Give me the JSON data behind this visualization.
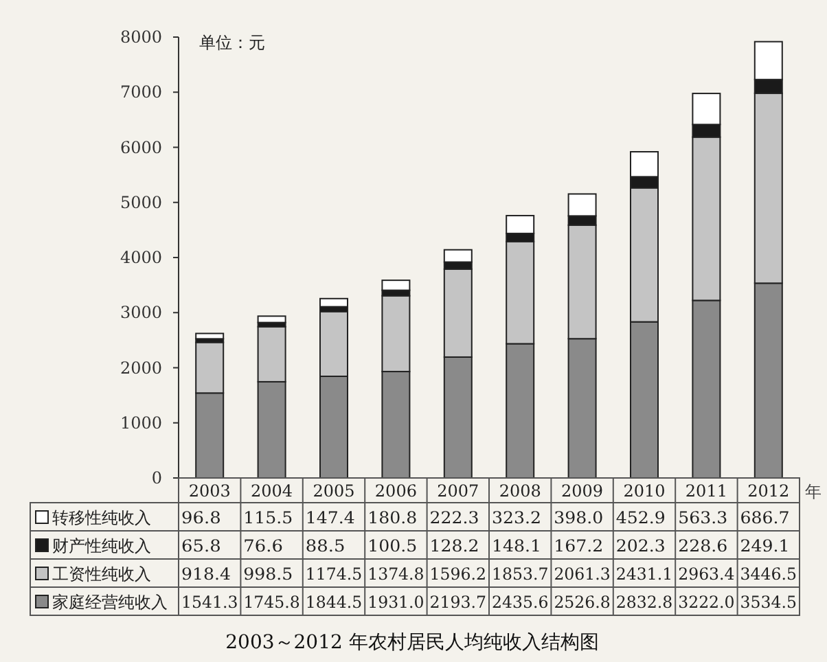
{
  "chart_data": {
    "type": "bar",
    "stacked": true,
    "title": "2003～2012 年农村居民人均纯收入结构图",
    "xlabel": "年",
    "annotations": [
      "单位：元"
    ],
    "categories": [
      "2003",
      "2004",
      "2005",
      "2006",
      "2007",
      "2008",
      "2009",
      "2010",
      "2011",
      "2012"
    ],
    "ylim": [
      0,
      8000
    ],
    "yticks": [
      0,
      1000,
      2000,
      3000,
      4000,
      5000,
      6000,
      7000,
      8000
    ],
    "grid": false,
    "legend": "bottom",
    "series": [
      {
        "name": "家庭经营纯收入",
        "color": "#8a8a8a",
        "values": [
          1541.3,
          1745.8,
          1844.5,
          1931.0,
          2193.7,
          2435.6,
          2526.8,
          2832.8,
          3222.0,
          3534.5
        ],
        "value_labels": [
          "1541.3",
          "1745.8",
          "1844.5",
          "1931.0",
          "2193.7",
          "2435.6",
          "2526.8",
          "2832.8",
          "3222.0",
          "3534.5"
        ]
      },
      {
        "name": "工资性纯收入",
        "color": "#c4c4c4",
        "values": [
          918.4,
          998.5,
          1174.5,
          1374.8,
          1596.2,
          1853.7,
          2061.3,
          2431.1,
          2963.4,
          3446.5
        ],
        "value_labels": [
          "918.4",
          "998.5",
          "1174.5",
          "1374.8",
          "1596.2",
          "1853.7",
          "2061.3",
          "2431.1",
          "2963.4",
          "3446.5"
        ]
      },
      {
        "name": "财产性纯收入",
        "color": "#1a1a1a",
        "values": [
          65.8,
          76.6,
          88.5,
          100.5,
          128.2,
          148.1,
          167.2,
          202.3,
          228.6,
          249.1
        ],
        "value_labels": [
          "65.8",
          "76.6",
          "88.5",
          "100.5",
          "128.2",
          "148.1",
          "167.2",
          "202.3",
          "228.6",
          "249.1"
        ]
      },
      {
        "name": "转移性纯收入",
        "color": "#ffffff",
        "values": [
          96.8,
          115.5,
          147.4,
          180.8,
          222.3,
          323.2,
          398.0,
          452.9,
          563.3,
          686.7
        ],
        "value_labels": [
          "96.8",
          "115.5",
          "147.4",
          "180.8",
          "222.3",
          "323.2",
          "398.0",
          "452.9",
          "563.3",
          "686.7"
        ]
      }
    ]
  }
}
